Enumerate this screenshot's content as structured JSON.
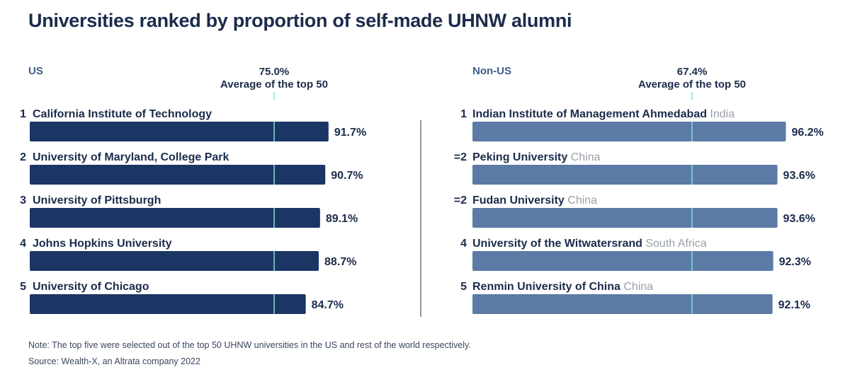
{
  "title": "Universities ranked by proportion of self-made UHNW alumni",
  "note": "Note: The top five were selected out of the top 50 UHNW universities in the US and rest of the world respectively.",
  "source": "Source: Wealth-X, an Altrata company 2022",
  "colors": {
    "us_bar": "#1b3564",
    "nonus_bar": "#5b7aa6",
    "avg_line": "#7fe0cf",
    "text": "#1b2b4b",
    "country": "#9aa0aa",
    "section_label": "#3b5d8a",
    "divider": "#333333"
  },
  "chart_data": [
    {
      "type": "bar",
      "panel": "US",
      "label": "US",
      "average": 75.0,
      "average_value_label": "75.0%",
      "average_label": "Average of the top 50",
      "categories": [
        "California Institute of Technology",
        "University of Maryland, College Park",
        "University of Pittsburgh",
        "Johns Hopkins University",
        "University of Chicago"
      ],
      "ranks": [
        "1",
        "2",
        "3",
        "4",
        "5"
      ],
      "countries": [
        "",
        "",
        "",
        "",
        ""
      ],
      "values": [
        91.7,
        90.7,
        89.1,
        88.7,
        84.7
      ],
      "value_labels": [
        "91.7%",
        "90.7%",
        "89.1%",
        "88.7%",
        "84.7%"
      ]
    },
    {
      "type": "bar",
      "panel": "Non-US",
      "label": "Non-US",
      "average": 67.4,
      "average_value_label": "67.4%",
      "average_label": "Average of the top 50",
      "categories": [
        "Indian Institute of Management Ahmedabad",
        "Peking University",
        "Fudan University",
        "University of the Witwatersrand",
        "Renmin University of China"
      ],
      "ranks": [
        "1",
        "=2",
        "=2",
        "4",
        "5"
      ],
      "countries": [
        "India",
        "China",
        "China",
        "South Africa",
        "China"
      ],
      "values": [
        96.2,
        93.6,
        93.6,
        92.3,
        92.1
      ],
      "value_labels": [
        "96.2%",
        "93.6%",
        "93.6%",
        "92.3%",
        "92.1%"
      ]
    }
  ]
}
